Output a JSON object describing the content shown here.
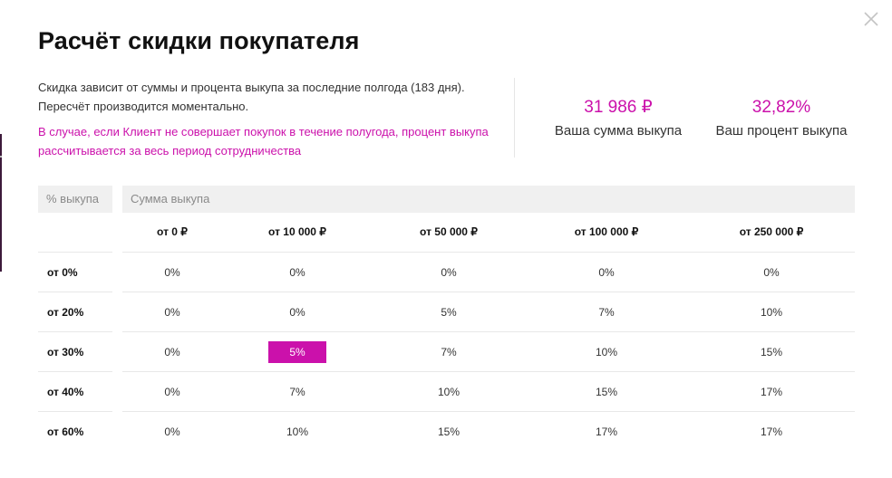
{
  "modal": {
    "title": "Расчёт скидки покупателя",
    "description": "Скидка зависит от суммы и процента выкупа за последние полгода (183 дня). Пересчёт производится моментально.",
    "note": "В случае, если Клиент не совершает покупок в течение полугода, процент выкупа рассчитывается за весь период сотрудничества",
    "close_icon": "close-icon"
  },
  "stats": {
    "sum_value": "31 986 ₽",
    "sum_label": "Ваша сумма выкупа",
    "pct_value": "32,82%",
    "pct_label": "Ваш процент выкупа"
  },
  "table": {
    "pct_header": "% выкупа",
    "sum_header": "Сумма выкупа",
    "columns": [
      "от 0 ₽",
      "от 10 000 ₽",
      "от 50 000 ₽",
      "от 100 000 ₽",
      "от 250 000 ₽"
    ],
    "rows": [
      {
        "label": "от 0%",
        "cells": [
          "0%",
          "0%",
          "0%",
          "0%",
          "0%"
        ]
      },
      {
        "label": "от 20%",
        "cells": [
          "0%",
          "0%",
          "5%",
          "7%",
          "10%"
        ]
      },
      {
        "label": "от 30%",
        "cells": [
          "0%",
          "5%",
          "7%",
          "10%",
          "15%"
        ]
      },
      {
        "label": "от 40%",
        "cells": [
          "0%",
          "7%",
          "10%",
          "15%",
          "17%"
        ]
      },
      {
        "label": "от 60%",
        "cells": [
          "0%",
          "10%",
          "15%",
          "17%",
          "17%"
        ]
      }
    ],
    "highlighted": {
      "row": 2,
      "col": 1
    }
  },
  "colors": {
    "accent": "#cb11ab",
    "header_bg": "#f0f0f0"
  }
}
